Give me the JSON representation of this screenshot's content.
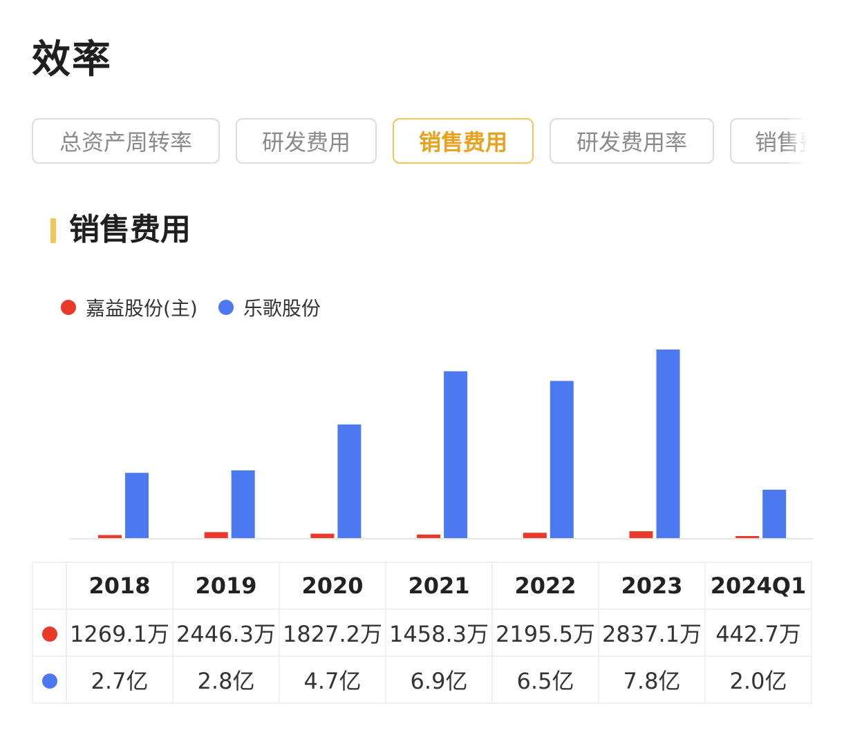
{
  "page": {
    "title": "效率"
  },
  "tabs": [
    {
      "label": "总资产周转率",
      "active": false
    },
    {
      "label": "研发费用",
      "active": false
    },
    {
      "label": "销售费用",
      "active": true
    },
    {
      "label": "研发费用率",
      "active": false
    },
    {
      "label": "销售费",
      "active": false
    }
  ],
  "section": {
    "title": "销售费用"
  },
  "colors": {
    "series1": "#e8392a",
    "series2": "#4c78f0",
    "accent": "#f0c55a"
  },
  "chart_data": {
    "type": "bar",
    "categories": [
      "2018",
      "2019",
      "2020",
      "2021",
      "2022",
      "2023",
      "2024Q1"
    ],
    "series": [
      {
        "name": "嘉益股份(主)",
        "values": [
          12691000,
          24463000,
          18272000,
          14583000,
          21955000,
          28371000,
          4427000
        ],
        "display": [
          "1269.1万",
          "2446.3万",
          "1827.2万",
          "1458.3万",
          "2195.5万",
          "2837.1万",
          "442.7万"
        ]
      },
      {
        "name": "乐歌股份",
        "values": [
          270000000,
          280000000,
          470000000,
          690000000,
          650000000,
          780000000,
          200000000
        ],
        "display": [
          "2.7亿",
          "2.8亿",
          "4.7亿",
          "6.9亿",
          "6.5亿",
          "7.8亿",
          "2.0亿"
        ]
      }
    ],
    "title": "",
    "xlabel": "",
    "ylabel": "",
    "ylim": [
      0,
      800000000
    ],
    "grid": false,
    "legend": "top-left"
  }
}
